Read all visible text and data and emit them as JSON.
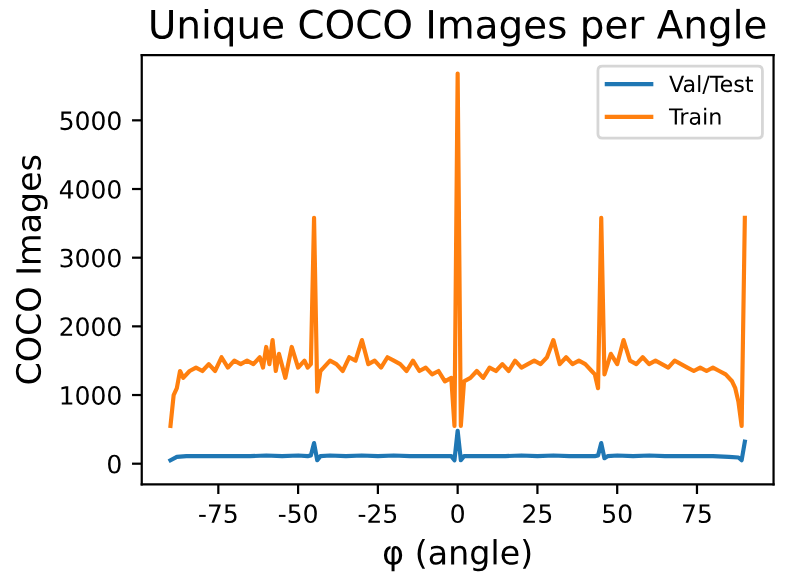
{
  "chart_data": {
    "type": "line",
    "title": "Unique COCO Images per Angle",
    "xlabel": "φ (angle)",
    "ylabel": "COCO Images",
    "xlim": [
      -99,
      99
    ],
    "ylim": [
      -300,
      5950
    ],
    "xticks": [
      -75,
      -50,
      -25,
      0,
      25,
      50,
      75
    ],
    "yticks": [
      0,
      1000,
      2000,
      3000,
      4000,
      5000
    ],
    "legend": "top right",
    "grid": false,
    "series": [
      {
        "name": "Val/Test",
        "color": "#1f77b4",
        "x": [
          -90,
          -88,
          -85,
          -80,
          -75,
          -70,
          -65,
          -60,
          -55,
          -50,
          -47,
          -46,
          -45,
          -44,
          -43,
          -40,
          -35,
          -30,
          -25,
          -20,
          -15,
          -10,
          -5,
          -2,
          -1,
          0,
          1,
          2,
          5,
          10,
          15,
          20,
          25,
          30,
          35,
          40,
          43,
          44,
          45,
          46,
          47,
          50,
          55,
          60,
          65,
          70,
          75,
          80,
          85,
          88,
          89,
          90
        ],
        "values": [
          50,
          100,
          110,
          110,
          110,
          110,
          110,
          120,
          110,
          120,
          110,
          120,
          300,
          50,
          110,
          120,
          110,
          120,
          110,
          120,
          110,
          110,
          110,
          110,
          50,
          480,
          50,
          110,
          110,
          110,
          110,
          120,
          110,
          120,
          110,
          110,
          110,
          120,
          300,
          80,
          110,
          120,
          110,
          120,
          110,
          110,
          110,
          110,
          100,
          90,
          50,
          320
        ]
      },
      {
        "name": "Train",
        "color": "#ff7f0e",
        "x": [
          -90,
          -89,
          -88,
          -87,
          -86,
          -84,
          -82,
          -80,
          -78,
          -76,
          -74,
          -72,
          -70,
          -68,
          -66,
          -64,
          -62,
          -61,
          -60,
          -59,
          -58,
          -57,
          -56,
          -54,
          -52,
          -50,
          -48,
          -47,
          -46,
          -45,
          -44,
          -43,
          -42,
          -40,
          -38,
          -36,
          -34,
          -32,
          -30,
          -28,
          -26,
          -24,
          -22,
          -20,
          -18,
          -16,
          -14,
          -12,
          -10,
          -8,
          -6,
          -4,
          -2,
          -1,
          0,
          1,
          2,
          4,
          6,
          8,
          10,
          12,
          14,
          16,
          18,
          20,
          22,
          24,
          26,
          28,
          30,
          32,
          34,
          36,
          38,
          40,
          42,
          43,
          44,
          45,
          46,
          47,
          48,
          50,
          52,
          54,
          56,
          58,
          60,
          62,
          64,
          66,
          68,
          70,
          72,
          74,
          76,
          78,
          80,
          82,
          84,
          86,
          87,
          88,
          89,
          90
        ],
        "values": [
          550,
          1000,
          1100,
          1350,
          1250,
          1350,
          1400,
          1350,
          1450,
          1350,
          1550,
          1400,
          1500,
          1450,
          1500,
          1450,
          1550,
          1400,
          1700,
          1450,
          1800,
          1350,
          1600,
          1250,
          1700,
          1400,
          1500,
          1400,
          1450,
          3580,
          1050,
          1350,
          1400,
          1500,
          1450,
          1350,
          1550,
          1500,
          1800,
          1450,
          1500,
          1400,
          1550,
          1500,
          1450,
          1350,
          1500,
          1350,
          1400,
          1300,
          1350,
          1200,
          1250,
          550,
          5680,
          550,
          1200,
          1250,
          1350,
          1250,
          1400,
          1350,
          1450,
          1350,
          1500,
          1400,
          1450,
          1500,
          1450,
          1550,
          1800,
          1450,
          1550,
          1450,
          1500,
          1450,
          1350,
          1300,
          1100,
          3580,
          1300,
          1450,
          1600,
          1450,
          1800,
          1500,
          1450,
          1550,
          1450,
          1500,
          1450,
          1400,
          1500,
          1450,
          1400,
          1350,
          1400,
          1350,
          1400,
          1350,
          1300,
          1200,
          1100,
          900,
          550,
          3580
        ]
      }
    ]
  }
}
